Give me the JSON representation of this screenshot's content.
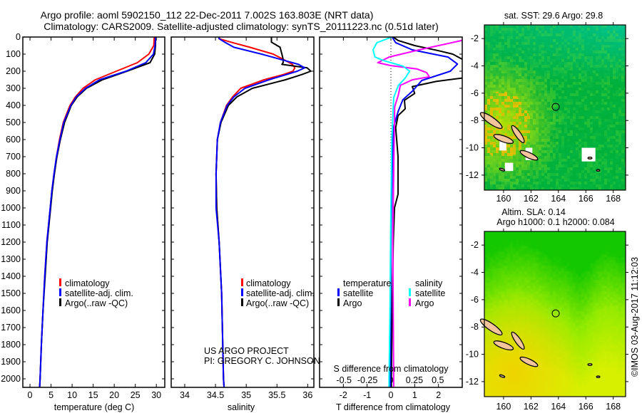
{
  "title": {
    "line1": "Argo profile: aoml 5902150_112 22-Dec-2011 7.002S 163.803E (NRT data)",
    "line2": "Climatology: CARS2009. Satellite-adjusted climatology: synTS_20111223.nc (0.51d later)"
  },
  "credit": {
    "line1": "US ARGO PROJECT",
    "line2": "PI: GREGORY C. JOHNSON"
  },
  "copyright": "©IMOS 03-Aug-2017 11:12:03",
  "chart_data": [
    {
      "type": "line",
      "name": "temperature-profile",
      "xlabel": "temperature (deg C)",
      "ylabel": "depth",
      "xlim": [
        -1.7,
        32
      ],
      "ylim": [
        2050,
        0
      ],
      "xticks": [
        0,
        5,
        10,
        15,
        20,
        25,
        30
      ],
      "xtick_labels": [
        "0",
        "5",
        "10",
        "15",
        "20",
        "25",
        "30"
      ],
      "yticks": [
        0,
        100,
        200,
        300,
        400,
        500,
        600,
        700,
        800,
        900,
        1000,
        1100,
        1200,
        1300,
        1400,
        1500,
        1600,
        1700,
        1800,
        1900,
        2000
      ],
      "ytick_labels": [
        "0",
        "100",
        "200",
        "300",
        "400",
        "500",
        "600",
        "700",
        "800",
        "900",
        "1000",
        "1100",
        "1200",
        "1300",
        "1400",
        "1500",
        "1600",
        "1700",
        "1800",
        "1900",
        "2000"
      ],
      "depth": [
        0,
        50,
        100,
        150,
        200,
        250,
        300,
        350,
        400,
        500,
        600,
        700,
        800,
        900,
        1000,
        1200,
        1400,
        1600,
        1800,
        2000,
        2050
      ],
      "series": [
        {
          "name": "climatology",
          "color": "#ff0000",
          "values": [
            29.5,
            29.4,
            28.2,
            25.5,
            20.5,
            15.5,
            12.6,
            10.8,
            9.5,
            7.9,
            7.0,
            6.3,
            5.7,
            5.2,
            4.8,
            4.0,
            3.5,
            3.1,
            2.7,
            2.4,
            2.3
          ]
        },
        {
          "name": "Argo(..raw -QC)",
          "color": "#000000",
          "values": [
            29.8,
            29.8,
            29.6,
            28.5,
            23.0,
            17.2,
            13.4,
            11.2,
            9.8,
            8.2,
            7.2,
            6.4,
            5.8,
            5.3,
            4.9,
            4.1,
            3.6,
            3.1,
            2.7,
            2.4,
            2.3
          ]
        },
        {
          "name": "satellite-adj. clim.",
          "color": "#0000ff",
          "values": [
            29.8,
            29.7,
            29.3,
            27.5,
            22.8,
            16.5,
            13.2,
            11.0,
            9.7,
            8.0,
            7.1,
            6.3,
            5.7,
            5.2,
            4.8,
            4.0,
            3.5,
            3.1,
            2.7,
            2.4,
            2.3
          ]
        }
      ],
      "legend": {
        "placement": "lower-center",
        "entries": [
          "climatology",
          "satellite-adj. clim.",
          "Argo(..raw -QC)"
        ]
      }
    },
    {
      "type": "line",
      "name": "salinity-profile",
      "xlabel": "salinity",
      "xlim": [
        33.78,
        36.1
      ],
      "ylim": [
        2050,
        0
      ],
      "xticks": [
        34,
        34.5,
        35,
        35.5,
        36
      ],
      "xtick_labels": [
        "34",
        "34.5",
        "35",
        "35.5",
        "36"
      ],
      "depth": [
        0,
        10,
        30,
        60,
        100,
        130,
        150,
        160,
        180,
        200,
        220,
        250,
        300,
        350,
        400,
        500,
        600,
        800,
        1000,
        1200,
        1500,
        2000,
        2050
      ],
      "series": [
        {
          "name": "climatology",
          "color": "#ff0000",
          "values": [
            34.56,
            34.56,
            34.75,
            35.06,
            35.44,
            35.6,
            35.7,
            35.75,
            35.79,
            35.76,
            35.6,
            35.29,
            34.91,
            34.78,
            34.68,
            34.58,
            34.53,
            34.51,
            34.52,
            34.56,
            34.6,
            34.63,
            34.64
          ]
        },
        {
          "name": "Argo(..raw -QC)",
          "color": "#000000",
          "values": [
            35.41,
            35.41,
            35.41,
            35.55,
            35.58,
            35.6,
            35.6,
            35.58,
            35.99,
            36.05,
            35.9,
            35.64,
            35.1,
            34.85,
            34.71,
            34.59,
            34.53,
            34.51,
            34.52,
            34.56,
            34.6,
            34.63,
            34.64
          ]
        },
        {
          "name": "satellite-adj. clim.",
          "color": "#0000ff",
          "values": [
            34.56,
            34.56,
            34.65,
            34.8,
            35.25,
            35.55,
            35.75,
            35.85,
            35.95,
            35.83,
            35.65,
            35.37,
            34.98,
            34.8,
            34.69,
            34.58,
            34.53,
            34.51,
            34.51,
            34.56,
            34.6,
            34.63,
            34.64
          ]
        }
      ],
      "legend": {
        "placement": "lower-center",
        "entries": [
          "climatology",
          "satellite-adj. clim.",
          "Argo(..raw -QC)"
        ]
      }
    },
    {
      "type": "line",
      "name": "difference-profile",
      "xlabel": "T difference from climatology",
      "xlabel2": "S difference from climatology",
      "xlim": [
        -3,
        3
      ],
      "xlim2": [
        -0.76,
        0.76
      ],
      "ylim": [
        2050,
        0
      ],
      "xticks": [
        -2,
        -1,
        0,
        1,
        2
      ],
      "xtick_labels": [
        "-2",
        "-1",
        "0",
        "1",
        "2"
      ],
      "xticks2": [
        -0.5,
        -0.25,
        0,
        0.25,
        0.5
      ],
      "xtick2_labels": [
        "-0.5",
        "-0.25",
        "0",
        "0.25",
        "0.5"
      ],
      "series": [
        {
          "name": "temperature Argo",
          "axis": "T",
          "color": "#000000",
          "depth": [
            0,
            20,
            50,
            80,
            100,
            130,
            160,
            200,
            240,
            260,
            290,
            330,
            370,
            420,
            460,
            530,
            700,
            920,
            1000,
            1200,
            1600,
            2000,
            2050
          ],
          "values": [
            0.1,
            0.3,
            1.0,
            2.0,
            2.6,
            3.0,
            3.5,
            3.5,
            3.0,
            1.9,
            0.9,
            1.0,
            0.57,
            0.6,
            0.3,
            0.2,
            0.3,
            0.3,
            0.15,
            0.1,
            0.05,
            0.02,
            0.02
          ]
        },
        {
          "name": "temperature satellite",
          "axis": "T",
          "color": "#0000ff",
          "depth": [
            0,
            33,
            75,
            117,
            158,
            200,
            254,
            317,
            367,
            437,
            533,
            800,
            1200,
            2000,
            2050
          ],
          "values": [
            0.05,
            0.2,
            0.9,
            2.4,
            2.8,
            2.5,
            1.3,
            0.9,
            0.5,
            0.3,
            0.1,
            0.05,
            0.0,
            -0.02,
            -0.02
          ]
        },
        {
          "name": "salinity Argo",
          "axis": "S",
          "color": "#ff00ff",
          "depth": [
            0,
            21,
            75,
            117,
            150,
            167,
            187,
            208,
            233,
            250,
            283,
            338,
            408,
            800,
            1200,
            2000,
            2050
          ],
          "values": [
            0.8,
            0.75,
            0.3,
            -0.02,
            -0.14,
            0.0,
            0.28,
            0.38,
            0.41,
            0.23,
            0.1,
            0.08,
            0.04,
            0.03,
            0.02,
            0.03,
            0.03
          ]
        },
        {
          "name": "salinity satellite",
          "axis": "S",
          "color": "#00ffff",
          "depth": [
            0,
            33,
            75,
            117,
            137,
            171,
            200,
            242,
            283,
            354,
            600,
            1000,
            1600,
            2000,
            2050
          ],
          "values": [
            0.01,
            -0.15,
            -0.19,
            -0.17,
            -0.08,
            0.13,
            0.2,
            0.15,
            0.08,
            0.03,
            0.01,
            0.0,
            -0.01,
            -0.02,
            -0.02
          ]
        }
      ],
      "legend": {
        "placement": "lower-center",
        "temperature_heading": "temperature",
        "salinity_heading": "salinity",
        "t_entries": [
          "satellite",
          "Argo"
        ],
        "s_entries": [
          "satellite",
          "Argo"
        ]
      }
    }
  ],
  "maps": [
    {
      "name": "sst-map",
      "title": "sat. SST: 29.6 Argo: 29.8",
      "lon_range": [
        158.6,
        168.9
      ],
      "lat_range": [
        -13.1,
        -1.0
      ],
      "lon_ticks": [
        "160",
        "162",
        "164",
        "166",
        "168"
      ],
      "lat_ticks": [
        "-2",
        "-4",
        "-6",
        "-8",
        "-10",
        "-12"
      ],
      "float_position": {
        "lon": 163.803,
        "lat": -7.002
      }
    },
    {
      "name": "sla-map",
      "title": "Altim. SLA: 0.14",
      "subtitle": "Argo h1000: 0.1 h2000: 0.084",
      "lon_range": [
        158.6,
        168.9
      ],
      "lat_range": [
        -13.1,
        -1.0
      ],
      "lon_ticks": [
        "160",
        "162",
        "164",
        "166",
        "168"
      ],
      "lat_ticks": [
        "-2",
        "-4",
        "-6",
        "-8",
        "-10",
        "-12"
      ],
      "float_position": {
        "lon": 163.803,
        "lat": -7.002
      }
    }
  ]
}
